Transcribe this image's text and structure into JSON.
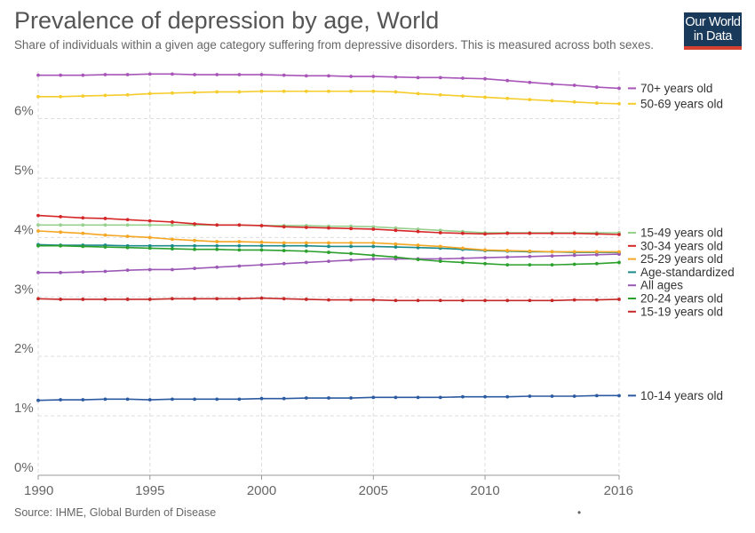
{
  "title": "Prevalence of depression by age, World",
  "subtitle": "Share of individuals within a given age category suffering from depressive disorders. This is measured across both sexes.",
  "logo": {
    "line1": "Our World",
    "line2": "in Data",
    "bg_color": "#1a3a5c",
    "bar_color": "#d6402f"
  },
  "source": "Source: IHME, Global Burden of Disease",
  "footer_mark": "•",
  "chart_data": {
    "type": "line",
    "x": [
      1990,
      1991,
      1992,
      1993,
      1994,
      1995,
      1996,
      1997,
      1998,
      1999,
      2000,
      2001,
      2002,
      2003,
      2004,
      2005,
      2006,
      2007,
      2008,
      2009,
      2010,
      2011,
      2012,
      2013,
      2014,
      2015,
      2016
    ],
    "xlim": [
      1990,
      2016
    ],
    "ylim": [
      0,
      6.8
    ],
    "x_ticks": [
      1990,
      1995,
      2000,
      2005,
      2010,
      2016
    ],
    "y_ticks": [
      0,
      1,
      2,
      3,
      4,
      5,
      6
    ],
    "y_tick_labels": [
      "0%",
      "1%",
      "2%",
      "3%",
      "4%",
      "5%",
      "6%"
    ],
    "grid": true,
    "legend_placement": "right",
    "series": [
      {
        "name": "70+ years old",
        "color": "#a855b8",
        "values": [
          6.73,
          6.73,
          6.73,
          6.74,
          6.74,
          6.75,
          6.75,
          6.74,
          6.74,
          6.74,
          6.74,
          6.73,
          6.72,
          6.72,
          6.71,
          6.71,
          6.7,
          6.69,
          6.69,
          6.68,
          6.67,
          6.64,
          6.61,
          6.58,
          6.56,
          6.53,
          6.51
        ]
      },
      {
        "name": "50-69 years old",
        "color": "#f5cc2a",
        "values": [
          6.37,
          6.37,
          6.38,
          6.39,
          6.4,
          6.42,
          6.43,
          6.44,
          6.45,
          6.45,
          6.46,
          6.46,
          6.46,
          6.46,
          6.46,
          6.46,
          6.45,
          6.42,
          6.4,
          6.38,
          6.36,
          6.34,
          6.32,
          6.3,
          6.28,
          6.26,
          6.25
        ]
      },
      {
        "name": "15-49 years old",
        "color": "#98d08e",
        "values": [
          4.21,
          4.21,
          4.21,
          4.21,
          4.21,
          4.21,
          4.21,
          4.21,
          4.21,
          4.21,
          4.2,
          4.2,
          4.2,
          4.19,
          4.19,
          4.18,
          4.16,
          4.14,
          4.12,
          4.1,
          4.08,
          4.08,
          4.08,
          4.08,
          4.08,
          4.08,
          4.08
        ]
      },
      {
        "name": "30-34 years old",
        "color": "#d62728",
        "values": [
          4.37,
          4.35,
          4.33,
          4.32,
          4.3,
          4.28,
          4.26,
          4.23,
          4.21,
          4.21,
          4.2,
          4.18,
          4.17,
          4.16,
          4.15,
          4.14,
          4.12,
          4.1,
          4.08,
          4.07,
          4.06,
          4.07,
          4.07,
          4.07,
          4.07,
          4.06,
          4.05
        ]
      },
      {
        "name": "Age-standardized",
        "color": "#1b8a8a",
        "values": [
          3.88,
          3.87,
          3.87,
          3.87,
          3.86,
          3.86,
          3.86,
          3.86,
          3.86,
          3.86,
          3.86,
          3.86,
          3.86,
          3.85,
          3.85,
          3.85,
          3.84,
          3.83,
          3.82,
          3.8,
          3.78,
          3.77,
          3.76,
          3.76,
          3.75,
          3.75,
          3.75
        ]
      },
      {
        "name": "All ages",
        "color": "#9b59b6",
        "values": [
          3.41,
          3.41,
          3.42,
          3.43,
          3.45,
          3.46,
          3.46,
          3.48,
          3.5,
          3.52,
          3.54,
          3.56,
          3.58,
          3.6,
          3.62,
          3.64,
          3.64,
          3.64,
          3.64,
          3.65,
          3.66,
          3.67,
          3.68,
          3.69,
          3.7,
          3.71,
          3.72
        ]
      },
      {
        "name": "25-29 years old",
        "color": "#f5a623",
        "values": [
          4.11,
          4.09,
          4.07,
          4.04,
          4.02,
          4.0,
          3.97,
          3.95,
          3.93,
          3.93,
          3.92,
          3.91,
          3.91,
          3.91,
          3.91,
          3.91,
          3.89,
          3.87,
          3.85,
          3.82,
          3.79,
          3.78,
          3.77,
          3.76,
          3.76,
          3.76,
          3.76
        ]
      },
      {
        "name": "20-24 years old",
        "color": "#2ca02c",
        "values": [
          3.86,
          3.86,
          3.85,
          3.84,
          3.83,
          3.82,
          3.81,
          3.8,
          3.8,
          3.79,
          3.79,
          3.78,
          3.77,
          3.75,
          3.73,
          3.7,
          3.67,
          3.63,
          3.6,
          3.58,
          3.56,
          3.54,
          3.54,
          3.54,
          3.55,
          3.56,
          3.58
        ]
      },
      {
        "name": "15-19 years old",
        "color": "#c62828",
        "values": [
          2.97,
          2.96,
          2.96,
          2.96,
          2.96,
          2.96,
          2.97,
          2.97,
          2.97,
          2.97,
          2.98,
          2.97,
          2.96,
          2.95,
          2.95,
          2.95,
          2.94,
          2.94,
          2.94,
          2.94,
          2.94,
          2.94,
          2.94,
          2.94,
          2.95,
          2.95,
          2.96
        ]
      },
      {
        "name": "10-14 years old",
        "color": "#2c5aa0",
        "values": [
          1.26,
          1.27,
          1.27,
          1.28,
          1.28,
          1.27,
          1.28,
          1.28,
          1.28,
          1.28,
          1.29,
          1.29,
          1.3,
          1.3,
          1.3,
          1.31,
          1.31,
          1.31,
          1.31,
          1.32,
          1.32,
          1.32,
          1.33,
          1.33,
          1.33,
          1.34,
          1.34
        ]
      }
    ]
  }
}
